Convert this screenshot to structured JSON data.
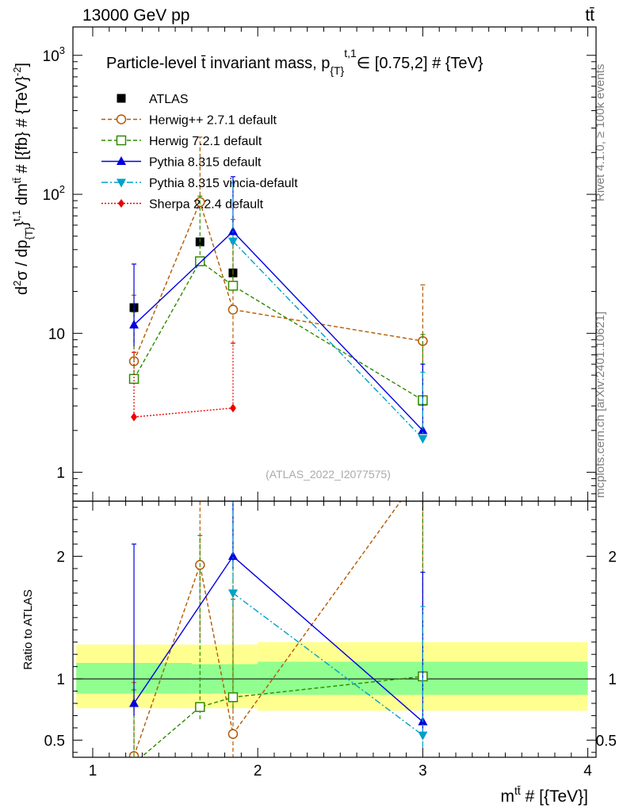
{
  "header": {
    "left": "13000 GeV pp",
    "right": "tt̄"
  },
  "side_labels": {
    "rivet": "Rivet 4.1.0, ≥ 100k events",
    "mcplots": "mcplots.cern.ch [arXiv:2401.10621]"
  },
  "colors": {
    "atlas": "#000000",
    "herwigpp": "#b35900",
    "herwig7": "#2e8b00",
    "pythia": "#0000e0",
    "vincia": "#00a0c8",
    "sherpa": "#ee0000",
    "band_inner": "#90ff90",
    "band_outer": "#ffff90"
  },
  "chart_data": [
    {
      "type": "scatter",
      "panel": "main",
      "title": "Particle-level t̄ invariant mass, p{T}t,1∈ [0.75,2] # {TeV}",
      "title_parts": {
        "main": "Particle-level t̄ invariant mass, p",
        "sub": "{T}",
        "sup": "t,1",
        "rest": "∈ [0.75,2] # {TeV}"
      },
      "ylabel": "d²σ / dp{T}t,1 dmtt̄ # [{fb} # {TeV}-2]",
      "ylabel_parts": {
        "a": "d",
        "a_sup": "2",
        "b": "σ / dp",
        "b_sub": "{T}",
        "c": "}",
        "c_sup": "t,1",
        "d": " dm",
        "d_sup": "tt̄",
        "e": " # [{fb} # {TeV}",
        "e_sup": "-2",
        "f": "]"
      },
      "yscale": "log",
      "xlim": [
        0.88,
        4.05
      ],
      "ylim": [
        0.62,
        1600
      ],
      "x_ticks": [
        1,
        2,
        3,
        4
      ],
      "y_ticks": [
        {
          "value": 1,
          "label": "1"
        },
        {
          "value": 10,
          "label": "10"
        },
        {
          "value": 100,
          "label": "10",
          "sup": "2"
        },
        {
          "value": 1000,
          "label": "10",
          "sup": "3"
        }
      ],
      "watermark": "(ATLAS_2022_I2077575)",
      "legend_position": "top-left",
      "series": [
        {
          "name": "ATLAS",
          "key": "atlas",
          "marker": "square-filled",
          "style": "none",
          "x": [
            1.25,
            1.65,
            1.85,
            3.0
          ],
          "y": [
            15.3,
            45.5,
            27.2,
            3.25
          ]
        },
        {
          "name": "Herwig++ 2.7.1 default",
          "key": "herwigpp",
          "marker": "circle-open",
          "style": "dashed",
          "x": [
            1.25,
            1.65,
            1.85,
            3.0
          ],
          "y": [
            6.3,
            88,
            14.8,
            8.8
          ],
          "err_low": [
            0.1,
            0.1,
            6.5,
            4.6
          ],
          "err_high": [
            12.5,
            170,
            30,
            13.5
          ]
        },
        {
          "name": "Herwig 7.2.1 default",
          "key": "herwig7",
          "marker": "square-open",
          "style": "dashed",
          "x": [
            1.25,
            1.65,
            1.85,
            3.0
          ],
          "y": [
            4.7,
            33,
            22,
            3.3
          ],
          "err_low": [
            0.1,
            0.1,
            0.1,
            0.1
          ],
          "err_high": [
            9.5,
            64,
            44,
            6.5
          ]
        },
        {
          "name": "Pythia 8.315 default",
          "key": "pythia",
          "marker": "triangle-up",
          "style": "solid",
          "x": [
            1.25,
            1.85,
            3.0
          ],
          "y": [
            11.5,
            54,
            2.0
          ],
          "err_low": [
            3.4,
            0.1,
            0.1
          ],
          "err_high": [
            20,
            80,
            4.0
          ]
        },
        {
          "name": "Pythia 8.315 vincia-default",
          "key": "vincia",
          "marker": "triangle-down",
          "style": "dashdot",
          "x": [
            1.85,
            3.0
          ],
          "y": [
            46,
            1.75
          ],
          "err_low": [
            0.1,
            0.1
          ],
          "err_high": [
            75,
            3.5
          ]
        },
        {
          "name": "Sherpa 2.2.4 default",
          "key": "sherpa",
          "marker": "diamond",
          "style": "dotted",
          "x": [
            1.25,
            1.85
          ],
          "y": [
            2.5,
            2.9
          ],
          "err_low": [
            0.1,
            0.1
          ],
          "err_high": [
            4.8,
            5.6
          ]
        }
      ]
    },
    {
      "type": "line",
      "panel": "ratio",
      "ylabel": "Ratio to ATLAS",
      "xlabel": "mtt̄ # [{TeV}]",
      "xlabel_parts": {
        "a": "m",
        "a_sup": "tt̄",
        "b": " # [{TeV}]"
      },
      "xlim": [
        0.88,
        4.05
      ],
      "ylim": [
        0.36,
        2.45
      ],
      "y_ticks": [
        {
          "value": 0.5,
          "label": "0.5"
        },
        {
          "value": 1,
          "label": "1"
        },
        {
          "value": 2,
          "label": "2"
        }
      ],
      "reference_line": 1,
      "bands": [
        {
          "x0": 0.9,
          "x1": 1.6,
          "inner": [
            0.88,
            1.13
          ],
          "outer": [
            0.76,
            1.28
          ]
        },
        {
          "x0": 1.6,
          "x1": 1.8,
          "inner": [
            0.88,
            1.12
          ],
          "outer": [
            0.76,
            1.28
          ]
        },
        {
          "x0": 1.8,
          "x1": 2.0,
          "inner": [
            0.88,
            1.12
          ],
          "outer": [
            0.76,
            1.28
          ]
        },
        {
          "x0": 2.0,
          "x1": 4.0,
          "inner": [
            0.87,
            1.14
          ],
          "outer": [
            0.74,
            1.3
          ]
        }
      ],
      "series": [
        {
          "name": "Herwig++ 2.7.1 default",
          "key": "herwigpp",
          "marker": "circle-open",
          "style": "dashed",
          "x": [
            1.25,
            1.65,
            1.85,
            3.0
          ],
          "y": [
            0.37,
            1.93,
            0.55,
            2.7
          ],
          "err_low": [
            0.3,
            0.6,
            0.3,
            1.3
          ],
          "err_high": [
            0.6,
            3.7,
            1.1,
            4.1
          ]
        },
        {
          "name": "Herwig 7.2.1 default",
          "key": "herwig7",
          "marker": "square-open",
          "style": "dashed",
          "x": [
            1.25,
            1.65,
            1.85,
            3.0
          ],
          "y": [
            0.31,
            0.77,
            0.85,
            1.02
          ],
          "err_low": [
            0.1,
            0.1,
            0.1,
            0.1
          ],
          "err_high": [
            0.6,
            1.4,
            1.7,
            1.77
          ]
        },
        {
          "name": "Pythia 8.315 default",
          "key": "pythia",
          "marker": "triangle-up",
          "style": "solid",
          "x": [
            1.25,
            1.85,
            3.0
          ],
          "y": [
            0.8,
            2.0,
            0.65
          ],
          "err_low": [
            0.1,
            0.1,
            0.1
          ],
          "err_high": [
            1.3,
            3.0,
            1.22
          ]
        },
        {
          "name": "Pythia 8.315 vincia-default",
          "key": "vincia",
          "marker": "triangle-down",
          "style": "dashdot",
          "x": [
            1.85,
            3.0
          ],
          "y": [
            1.7,
            0.54
          ],
          "err_low": [
            0.1,
            0.1
          ],
          "err_high": [
            2.6,
            1.05
          ]
        }
      ]
    }
  ]
}
